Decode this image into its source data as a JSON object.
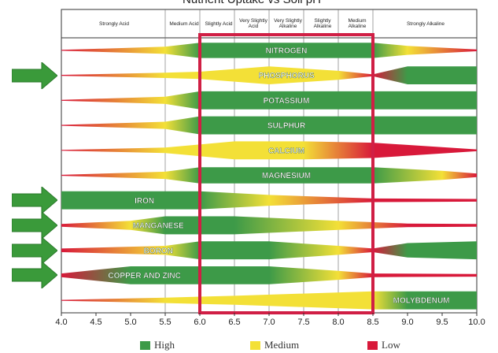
{
  "title": "Nutrient Uptake vs Soil pH",
  "header": {
    "labels": [
      "Strongly Acid",
      "Medium Acid",
      "Slightly Acid",
      "Very Slightly Acid",
      "Very Slightly Alkaline",
      "Slightly Alkaline",
      "Medium Alkaline",
      "Strongly Alkaline"
    ]
  },
  "chart_data": {
    "type": "diagram",
    "x_axis": {
      "min": 4.0,
      "max": 10.0,
      "ticks": [
        "4.0",
        "4.5",
        "5.0",
        "5.5",
        "6.0",
        "6.5",
        "7.0",
        "7.5",
        "8.0",
        "8.5",
        "9.0",
        "9.5",
        "10.0"
      ]
    },
    "highlight_range": [
      6.0,
      8.5
    ],
    "nutrients": [
      {
        "name": "NITROGEN",
        "arrow": false,
        "profile": [
          [
            4.0,
            0.05,
            "L"
          ],
          [
            5.5,
            0.4,
            "M"
          ],
          [
            6.0,
            0.85,
            "H"
          ],
          [
            8.5,
            0.85,
            "H"
          ],
          [
            9.0,
            0.5,
            "M"
          ],
          [
            10.0,
            0.1,
            "L"
          ]
        ]
      },
      {
        "name": "PHOSPHORUS",
        "arrow": true,
        "profile": [
          [
            4.0,
            0.05,
            "L"
          ],
          [
            5.5,
            0.3,
            "M"
          ],
          [
            6.0,
            0.4,
            "M"
          ],
          [
            7.0,
            1.0,
            "M"
          ],
          [
            8.0,
            0.5,
            "M"
          ],
          [
            8.5,
            0.1,
            "L"
          ],
          [
            9.0,
            1.0,
            "H"
          ],
          [
            10.0,
            1.0,
            "H"
          ]
        ]
      },
      {
        "name": "POTASSIUM",
        "arrow": false,
        "profile": [
          [
            4.0,
            0.05,
            "L"
          ],
          [
            5.5,
            0.4,
            "M"
          ],
          [
            6.0,
            1.0,
            "H"
          ],
          [
            10.0,
            1.0,
            "H"
          ]
        ]
      },
      {
        "name": "SULPHUR",
        "arrow": false,
        "profile": [
          [
            4.0,
            0.05,
            "L"
          ],
          [
            5.5,
            0.4,
            "M"
          ],
          [
            6.0,
            1.0,
            "H"
          ],
          [
            10.0,
            1.0,
            "H"
          ]
        ]
      },
      {
        "name": "CALCIUM",
        "arrow": false,
        "profile": [
          [
            4.0,
            0.05,
            "L"
          ],
          [
            5.5,
            0.3,
            "M"
          ],
          [
            6.5,
            1.0,
            "M"
          ],
          [
            7.5,
            1.0,
            "M"
          ],
          [
            8.5,
            0.85,
            "L"
          ],
          [
            10.0,
            0.1,
            "L"
          ]
        ]
      },
      {
        "name": "MAGNESIUM",
        "arrow": false,
        "profile": [
          [
            4.0,
            0.05,
            "L"
          ],
          [
            5.5,
            0.4,
            "M"
          ],
          [
            6.0,
            0.9,
            "H"
          ],
          [
            8.5,
            0.9,
            "H"
          ],
          [
            9.5,
            0.5,
            "M"
          ],
          [
            10.0,
            0.2,
            "L"
          ]
        ]
      },
      {
        "name": "IRON",
        "arrow": true,
        "profile": [
          [
            4.0,
            1.0,
            "H"
          ],
          [
            6.0,
            1.0,
            "H"
          ],
          [
            7.0,
            0.6,
            "M"
          ],
          [
            8.5,
            0.2,
            "L"
          ],
          [
            10.0,
            0.15,
            "L"
          ]
        ]
      },
      {
        "name": "MANGANESE",
        "arrow": true,
        "profile": [
          [
            4.0,
            0.15,
            "L"
          ],
          [
            5.0,
            0.5,
            "M"
          ],
          [
            5.5,
            1.0,
            "H"
          ],
          [
            6.5,
            1.0,
            "H"
          ],
          [
            8.0,
            0.5,
            "M"
          ],
          [
            9.0,
            0.2,
            "L"
          ],
          [
            10.0,
            0.15,
            "L"
          ]
        ]
      },
      {
        "name": "BORON",
        "arrow": true,
        "profile": [
          [
            4.0,
            0.2,
            "L"
          ],
          [
            5.5,
            0.5,
            "M"
          ],
          [
            6.0,
            1.0,
            "H"
          ],
          [
            7.0,
            1.0,
            "H"
          ],
          [
            8.0,
            0.5,
            "M"
          ],
          [
            8.5,
            0.2,
            "L"
          ],
          [
            9.0,
            0.8,
            "H"
          ],
          [
            10.0,
            1.0,
            "H"
          ]
        ]
      },
      {
        "name": "COPPER AND ZINC",
        "arrow": true,
        "profile": [
          [
            4.0,
            0.2,
            "L"
          ],
          [
            5.0,
            1.0,
            "H"
          ],
          [
            7.0,
            1.0,
            "H"
          ],
          [
            8.0,
            0.5,
            "M"
          ],
          [
            8.5,
            0.2,
            "L"
          ],
          [
            10.0,
            0.15,
            "L"
          ]
        ]
      },
      {
        "name": "MOLYBDENUM",
        "arrow": false,
        "profile": [
          [
            4.0,
            0.05,
            "L"
          ],
          [
            5.5,
            0.3,
            "M"
          ],
          [
            6.5,
            0.5,
            "M"
          ],
          [
            8.5,
            1.0,
            "M"
          ],
          [
            9.0,
            1.0,
            "H"
          ],
          [
            10.0,
            1.0,
            "H"
          ]
        ]
      }
    ]
  },
  "legend": [
    {
      "label": "High",
      "color": "#3d9a48"
    },
    {
      "label": "Medium",
      "color": "#f3e037"
    },
    {
      "label": "Low",
      "color": "#d8193a"
    }
  ],
  "colors": {
    "high": "#3d9a48",
    "medium": "#f3e037",
    "low": "#d8193a",
    "frame": "#d01f45",
    "arrow": "#3a9a3a"
  }
}
